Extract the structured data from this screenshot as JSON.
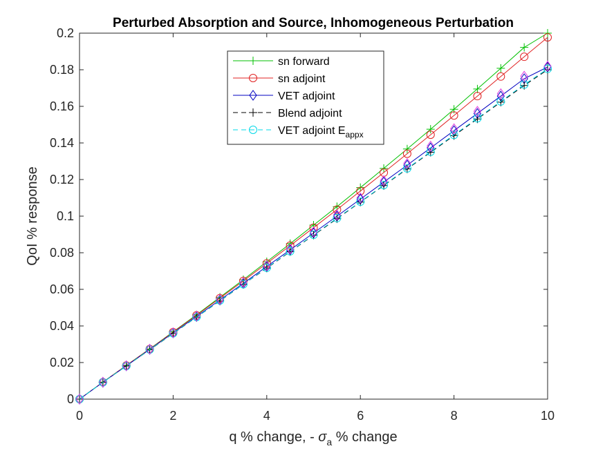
{
  "chart_data": {
    "type": "line",
    "title": "Perturbed Absorption and Source, Inhomogeneous Perturbation",
    "xlabel": {
      "prefix": "q % change, - ",
      "symbol": "σ",
      "subscript": "a",
      "suffix": " % change"
    },
    "ylabel": "QoI % response",
    "xlim": [
      0,
      10
    ],
    "ylim": [
      0,
      0.2
    ],
    "xticks": [
      0,
      2,
      4,
      6,
      8,
      10
    ],
    "xtick_labels": [
      "0",
      "2",
      "4",
      "6",
      "8",
      "10"
    ],
    "yticks": [
      0,
      0.02,
      0.04,
      0.06,
      0.08,
      0.1,
      0.12,
      0.14,
      0.16,
      0.18,
      0.2
    ],
    "ytick_labels": [
      "0",
      "0.02",
      "0.04",
      "0.06",
      "0.08",
      "0.1",
      "0.12",
      "0.14",
      "0.16",
      "0.18",
      "0.2"
    ],
    "grid": false,
    "legend_position": "top-center",
    "x": [
      0,
      0.5,
      1,
      1.5,
      2,
      2.5,
      3,
      3.5,
      4,
      4.5,
      5,
      5.5,
      6,
      6.5,
      7,
      7.5,
      8,
      8.5,
      9,
      9.5,
      10
    ],
    "series": [
      {
        "name": "sn forward",
        "color": "#00c000",
        "marker": "plus",
        "dash": "solid",
        "values": [
          0,
          0.0093,
          0.0184,
          0.0275,
          0.0368,
          0.0461,
          0.0557,
          0.0653,
          0.0751,
          0.085,
          0.0951,
          0.1052,
          0.1156,
          0.1261,
          0.1367,
          0.1475,
          0.1584,
          0.1695,
          0.1808,
          0.1922,
          0.2
        ]
      },
      {
        "name": "sn adjoint",
        "color": "#e02020",
        "marker": "circle",
        "dash": "solid",
        "values": [
          0,
          0.0093,
          0.0184,
          0.0274,
          0.0366,
          0.0458,
          0.0552,
          0.0646,
          0.0742,
          0.0839,
          0.0937,
          0.1036,
          0.1137,
          0.1238,
          0.1341,
          0.1445,
          0.155,
          0.1656,
          0.1763,
          0.1871,
          0.1977
        ]
      },
      {
        "name": "VET adjoint",
        "color": "#0000c0",
        "marker": "diamond",
        "dash": "solid",
        "values": [
          0,
          0.0092,
          0.0182,
          0.0272,
          0.0362,
          0.0452,
          0.0542,
          0.0633,
          0.0725,
          0.0816,
          0.0908,
          0.1,
          0.1093,
          0.1186,
          0.1279,
          0.1373,
          0.1467,
          0.1561,
          0.1656,
          0.1751,
          0.1815
        ]
      },
      {
        "name": "Blend adjoint",
        "color": "#000000",
        "marker": "plus",
        "dash": "dashed",
        "values": [
          0,
          0.0092,
          0.0181,
          0.027,
          0.0359,
          0.0448,
          0.0537,
          0.0627,
          0.0716,
          0.0806,
          0.0896,
          0.0986,
          0.1077,
          0.1167,
          0.1258,
          0.1349,
          0.144,
          0.1531,
          0.1623,
          0.1714,
          0.18
        ]
      },
      {
        "name": "VET adjoint E",
        "name_subscript": "appx",
        "color": "#00d8e8",
        "marker": "circle",
        "dash": "dashed",
        "values": [
          0,
          0.0092,
          0.0181,
          0.0271,
          0.036,
          0.0449,
          0.0539,
          0.0628,
          0.0718,
          0.0808,
          0.0898,
          0.0989,
          0.1079,
          0.117,
          0.1261,
          0.1352,
          0.1444,
          0.1535,
          0.1627,
          0.1719,
          0.1805
        ]
      }
    ],
    "overlay_markers": {
      "color": "#e040e0",
      "marker": "diamond",
      "values": [
        0,
        0.0093,
        0.0183,
        0.0273,
        0.0363,
        0.0454,
        0.0545,
        0.0637,
        0.0729,
        0.0821,
        0.0914,
        0.1007,
        0.11,
        0.1194,
        0.1288,
        0.1383,
        0.1478,
        0.1573,
        0.1669,
        0.1765,
        0.182
      ]
    }
  }
}
